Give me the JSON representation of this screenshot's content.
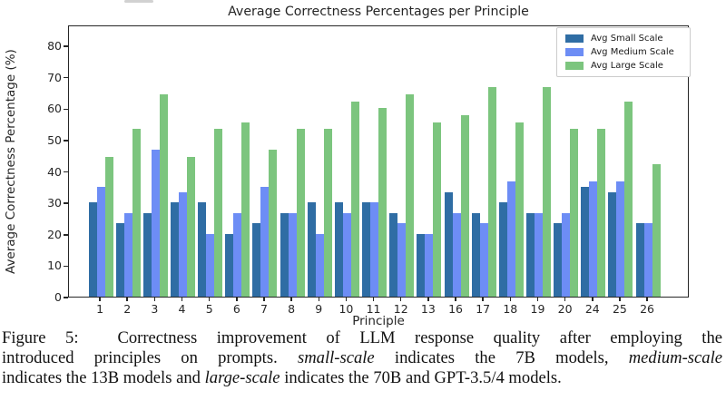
{
  "chart_data": {
    "type": "bar",
    "title": "Average Correctness Percentages per Principle",
    "xlabel": "Principle",
    "ylabel": "Average Correctness Percentage (%)",
    "ylim": [
      0,
      86
    ],
    "yticks": [
      0,
      10,
      20,
      30,
      40,
      50,
      60,
      70,
      80
    ],
    "grid": false,
    "legend_position": "upper right",
    "categories": [
      "1",
      "2",
      "3",
      "4",
      "5",
      "6",
      "7",
      "8",
      "9",
      "10",
      "11",
      "12",
      "13",
      "16",
      "17",
      "18",
      "19",
      "20",
      "24",
      "25",
      "26"
    ],
    "series": [
      {
        "name": "Avg Small Scale",
        "color": "#2f6da4",
        "values": [
          30.0,
          23.3,
          26.7,
          30.0,
          30.0,
          20.0,
          23.3,
          26.7,
          30.0,
          30.0,
          30.0,
          26.7,
          20.0,
          33.3,
          26.7,
          30.0,
          26.7,
          23.3,
          35.0,
          33.3,
          23.3
        ]
      },
      {
        "name": "Avg Medium Scale",
        "color": "#6d8df5",
        "values": [
          35.0,
          26.7,
          46.7,
          33.3,
          20.0,
          26.7,
          35.0,
          26.7,
          20.0,
          26.7,
          30.0,
          23.3,
          20.0,
          26.7,
          23.3,
          36.7,
          26.7,
          26.7,
          36.7,
          36.7,
          23.3
        ]
      },
      {
        "name": "Avg Large Scale",
        "color": "#7cc57e",
        "values": [
          44.4,
          53.3,
          64.4,
          44.4,
          53.3,
          55.6,
          46.7,
          53.3,
          53.3,
          62.2,
          60.0,
          64.4,
          55.6,
          57.8,
          66.7,
          55.6,
          66.7,
          53.3,
          53.3,
          62.2,
          42.2
        ]
      }
    ]
  },
  "caption": {
    "lines": [
      [
        {
          "t": "Figure 5:  Correctness improvement of LLM response quality after employing the",
          "i": false
        }
      ],
      [
        {
          "t": "introduced principles on prompts. ",
          "i": false
        },
        {
          "t": "small-scale",
          "i": true
        },
        {
          "t": " indicates the 7B models, ",
          "i": false
        },
        {
          "t": "medium-scale",
          "i": true
        }
      ],
      [
        {
          "t": "indicates the 13B models and ",
          "i": false
        },
        {
          "t": "large-scale",
          "i": true
        },
        {
          "t": " indicates the 70B and GPT-3.5/4 models.",
          "i": false
        }
      ]
    ]
  }
}
